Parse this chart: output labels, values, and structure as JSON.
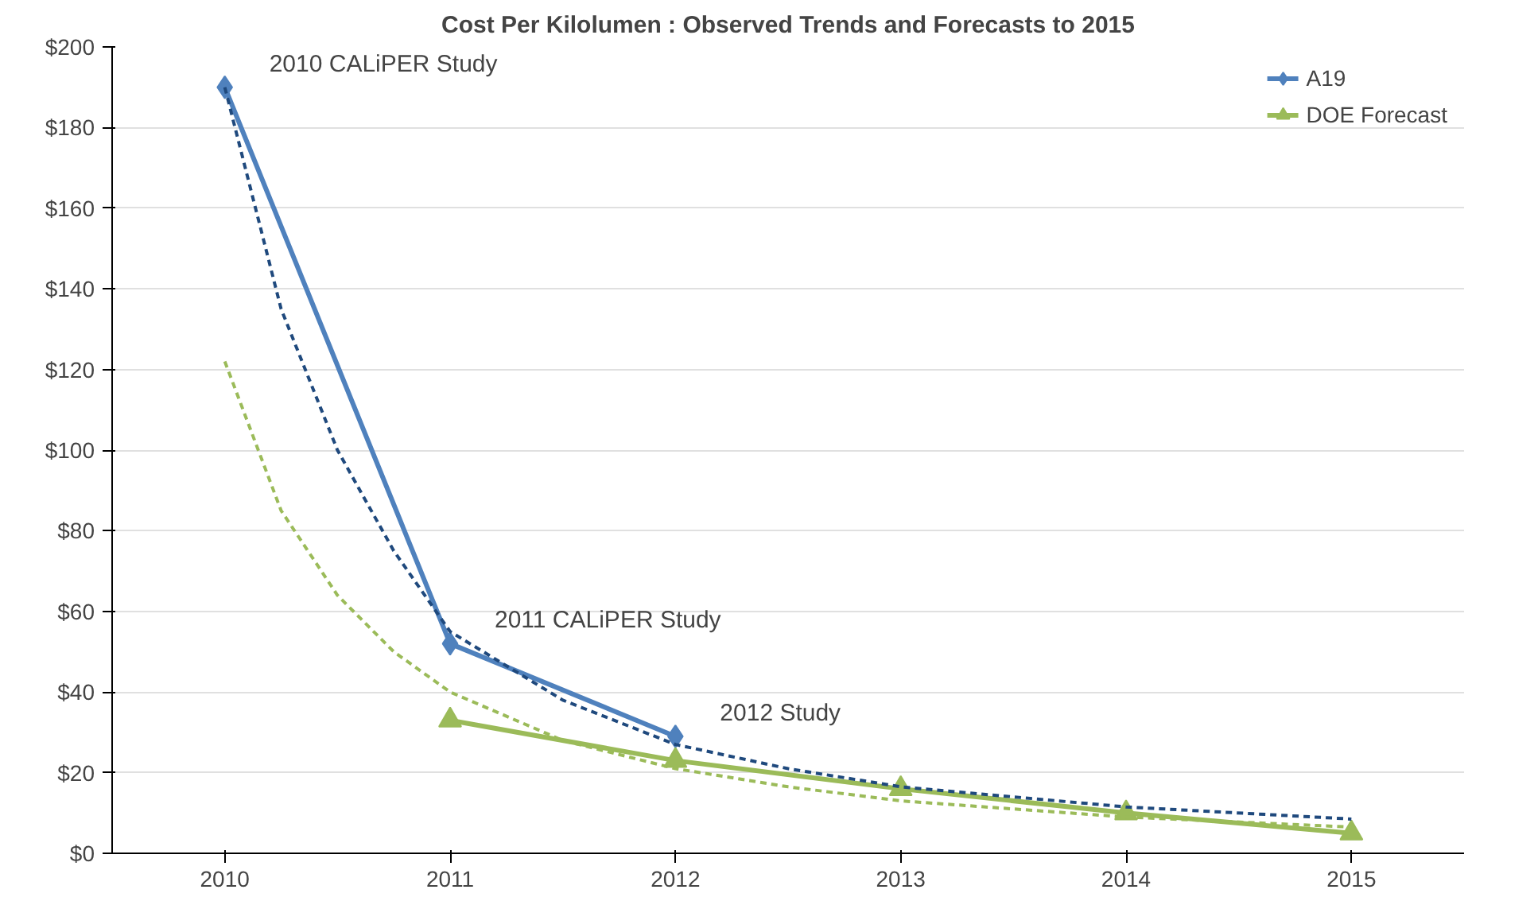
{
  "chart_data": {
    "type": "line",
    "title": "Cost Per Kilolumen : Observed Trends and Forecasts to 2015",
    "x": [
      2010,
      2011,
      2012,
      2013,
      2014,
      2015
    ],
    "xlim": [
      2009.5,
      2015.5
    ],
    "xticks": [
      2010,
      2011,
      2012,
      2013,
      2014,
      2015
    ],
    "ylim": [
      0,
      200
    ],
    "yticks": [
      {
        "value": 0,
        "label": "$0"
      },
      {
        "value": 20,
        "label": "$20"
      },
      {
        "value": 40,
        "label": "$40"
      },
      {
        "value": 60,
        "label": "$60"
      },
      {
        "value": 80,
        "label": "$80"
      },
      {
        "value": 100,
        "label": "$100"
      },
      {
        "value": 120,
        "label": "$120"
      },
      {
        "value": 140,
        "label": "$140"
      },
      {
        "value": 160,
        "label": "$160"
      },
      {
        "value": 180,
        "label": "$180"
      },
      {
        "value": 200,
        "label": "$200"
      }
    ],
    "grid": "y",
    "legend": "top right",
    "series": [
      {
        "name": "A19",
        "color": "#4f81bd",
        "marker": "diamond",
        "line_style": "solid",
        "values": [
          190,
          52,
          29,
          null,
          null,
          null
        ]
      },
      {
        "name": "DOE Forecast",
        "color": "#9bbb59",
        "marker": "triangle",
        "line_style": "solid",
        "values": [
          null,
          33,
          23,
          16,
          10,
          5
        ]
      },
      {
        "color": "#1f497d",
        "marker": "none",
        "line_style": "dashed",
        "x": [
          2010,
          2010.25,
          2010.5,
          2010.75,
          2011,
          2011.5,
          2012,
          2012.5,
          2013,
          2014,
          2015
        ],
        "values": [
          190,
          135,
          100,
          75,
          55,
          38,
          27,
          21,
          16.5,
          11.5,
          8.5
        ]
      },
      {
        "color": "#9bbb59",
        "marker": "none",
        "line_style": "dashed",
        "x": [
          2010,
          2010.25,
          2010.5,
          2010.75,
          2011,
          2011.5,
          2012,
          2012.5,
          2013,
          2014,
          2015
        ],
        "values": [
          122,
          85,
          64,
          50,
          40,
          28,
          21,
          16.5,
          13,
          9,
          6.5
        ]
      }
    ],
    "annotations": [
      {
        "text": "2010 CALiPER Study",
        "x": 2010,
        "y": 190
      },
      {
        "text": "2011 CALiPER Study",
        "x": 2011,
        "y": 52
      },
      {
        "text": "2012 Study",
        "x": 2012,
        "y": 29
      }
    ]
  }
}
